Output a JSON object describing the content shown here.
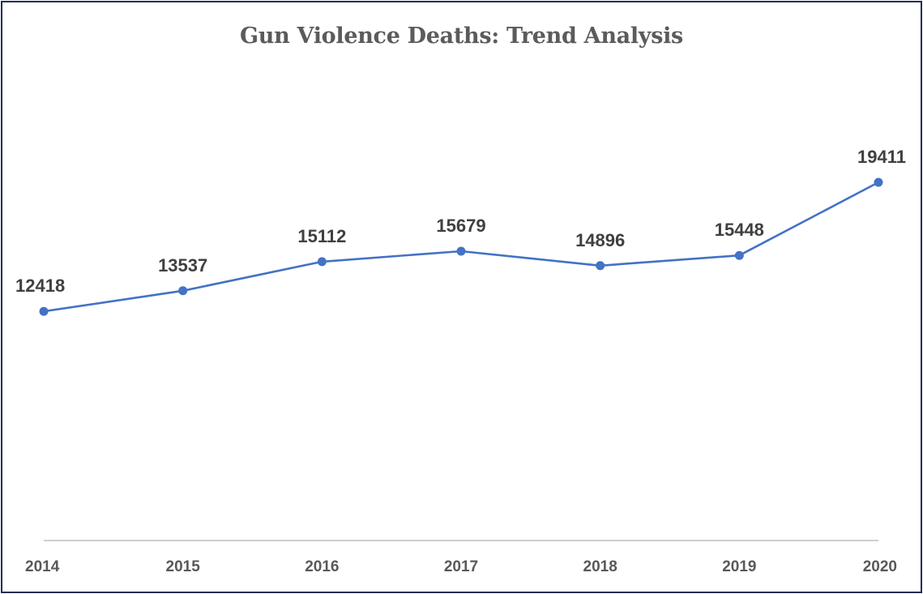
{
  "chart_data": {
    "type": "line",
    "title": "Gun Violence Deaths: Trend Analysis",
    "xlabel": "",
    "ylabel": "",
    "categories": [
      "2014",
      "2015",
      "2016",
      "2017",
      "2018",
      "2019",
      "2020"
    ],
    "series": [
      {
        "values": [
          12418,
          13537,
          15112,
          15679,
          14896,
          15448,
          19411
        ]
      }
    ],
    "ylim": [
      0,
      20000
    ],
    "grid": false,
    "legend": "none",
    "data_labels": true,
    "colors": {
      "line": "#4472c4",
      "axis": "#bfbfbf",
      "border": "#1f2d5a"
    }
  }
}
